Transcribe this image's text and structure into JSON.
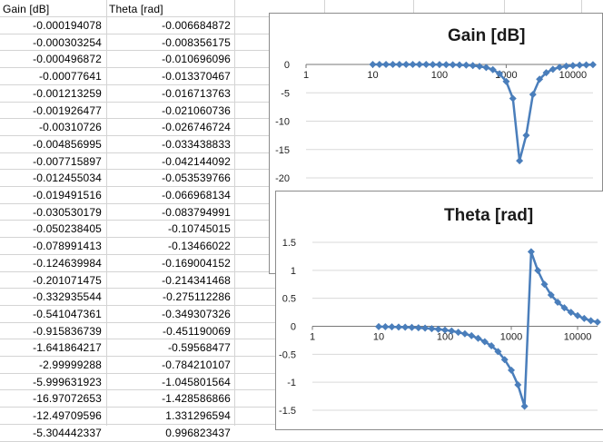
{
  "sheet": {
    "headers": [
      "Gain [dB]",
      "Theta [rad]"
    ],
    "rows": [
      [
        "-0.000194078",
        "-0.006684872"
      ],
      [
        "-0.000303254",
        "-0.008356175"
      ],
      [
        "-0.000496872",
        "-0.010696096"
      ],
      [
        "-0.00077641",
        "-0.013370467"
      ],
      [
        "-0.001213259",
        "-0.016713763"
      ],
      [
        "-0.001926477",
        "-0.021060736"
      ],
      [
        "-0.00310726",
        "-0.026746724"
      ],
      [
        "-0.004856995",
        "-0.033438833"
      ],
      [
        "-0.007715897",
        "-0.042144092"
      ],
      [
        "-0.012455034",
        "-0.053539766"
      ],
      [
        "-0.019491516",
        "-0.066968134"
      ],
      [
        "-0.030530179",
        "-0.083794991"
      ],
      [
        "-0.050238405",
        "-0.10745015"
      ],
      [
        "-0.078991413",
        "-0.13466022"
      ],
      [
        "-0.124639984",
        "-0.169004152"
      ],
      [
        "-0.201071475",
        "-0.214341468"
      ],
      [
        "-0.332935544",
        "-0.275112286"
      ],
      [
        "-0.541047361",
        "-0.349307326"
      ],
      [
        "-0.915836739",
        "-0.451190069"
      ],
      [
        "-1.641864217",
        "-0.59568477"
      ],
      [
        "-2.99999288",
        "-0.784210107"
      ],
      [
        "-5.999631923",
        "-1.045801564"
      ],
      [
        "-16.97072653",
        "-1.428586866"
      ],
      [
        "-12.49709596",
        "1.331296594"
      ],
      [
        "-5.304442337",
        "0.996823437"
      ]
    ]
  },
  "chart_data": [
    {
      "type": "scatter",
      "title": "Gain [dB]",
      "xscale": "log",
      "xlim": [
        1,
        20000
      ],
      "ylim": [
        -20,
        0
      ],
      "yticks": [
        0,
        -5,
        -10,
        -15,
        -20
      ],
      "yticklabels": [
        "0",
        "-5",
        "-10",
        "-15",
        "-20"
      ],
      "xticklabels": [
        "1",
        "10",
        "100",
        "1000",
        "10000"
      ],
      "color": "#4a7ebb",
      "x": [
        10,
        12.6,
        15.8,
        20,
        25.1,
        31.6,
        39.8,
        50.1,
        63.1,
        79.4,
        100,
        125.9,
        158.5,
        199.5,
        251.2,
        316.2,
        398.1,
        501.2,
        631,
        794.3,
        1000,
        1259,
        1585,
        1995,
        2512,
        3162,
        3981,
        5012,
        6310,
        7943,
        10000,
        12589,
        15849,
        19953
      ],
      "y": [
        -0.000194078,
        -0.000303254,
        -0.000496872,
        -0.00077641,
        -0.001213259,
        -0.001926477,
        -0.00310726,
        -0.004856995,
        -0.007715897,
        -0.012455034,
        -0.019491516,
        -0.030530179,
        -0.050238405,
        -0.078991413,
        -0.124639984,
        -0.201071475,
        -0.332935544,
        -0.541047361,
        -0.915836739,
        -1.641864217,
        -2.99999288,
        -5.999631923,
        -16.97072653,
        -12.49709596,
        -5.304442337,
        -2.6,
        -1.45,
        -0.85,
        -0.5,
        -0.3,
        -0.19,
        -0.12,
        -0.07,
        -0.045
      ]
    },
    {
      "type": "scatter",
      "title": "Theta [rad]",
      "xscale": "log",
      "xlim": [
        1,
        20000
      ],
      "ylim": [
        -1.5,
        1.5
      ],
      "yticks": [
        1.5,
        1,
        0.5,
        0,
        -0.5,
        -1,
        -1.5
      ],
      "yticklabels": [
        "1.5",
        "1",
        "0.5",
        "0",
        "-0.5",
        "-1",
        "-1.5"
      ],
      "xticklabels": [
        "1",
        "10",
        "100",
        "1000",
        "10000"
      ],
      "color": "#4a7ebb",
      "x": [
        10,
        12.6,
        15.8,
        20,
        25.1,
        31.6,
        39.8,
        50.1,
        63.1,
        79.4,
        100,
        125.9,
        158.5,
        199.5,
        251.2,
        316.2,
        398.1,
        501.2,
        631,
        794.3,
        1000,
        1259,
        1585,
        1995,
        2512,
        3162,
        3981,
        5012,
        6310,
        7943,
        10000,
        12589,
        15849,
        19953
      ],
      "y": [
        -0.006684872,
        -0.008356175,
        -0.010696096,
        -0.013370467,
        -0.016713763,
        -0.021060736,
        -0.026746724,
        -0.033438833,
        -0.042144092,
        -0.053539766,
        -0.066968134,
        -0.083794991,
        -0.10745015,
        -0.13466022,
        -0.169004152,
        -0.214341468,
        -0.275112286,
        -0.349307326,
        -0.451190069,
        -0.59568477,
        -0.784210107,
        -1.045801564,
        -1.428586866,
        1.331296594,
        0.996823437,
        0.75,
        0.56,
        0.43,
        0.33,
        0.25,
        0.19,
        0.14,
        0.1,
        0.075
      ]
    }
  ]
}
